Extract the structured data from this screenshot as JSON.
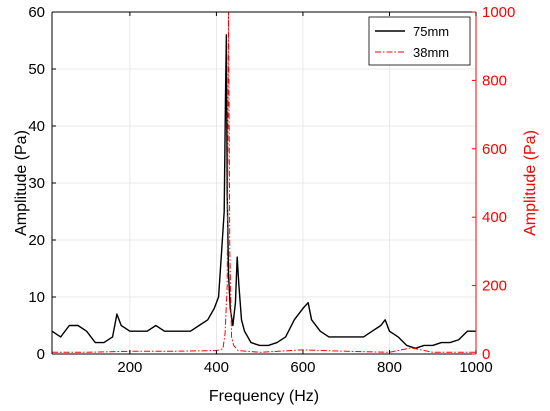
{
  "chart_data": {
    "type": "line",
    "title": "",
    "xlabel": "Frequency (Hz)",
    "ylabel_left": "Amplitude (Pa)",
    "ylabel_right": "Amplitude (Pa)",
    "xlim": [
      20,
      1000
    ],
    "ylim_left": [
      0,
      60
    ],
    "ylim_right": [
      0,
      1000
    ],
    "x_ticks": [
      200,
      400,
      600,
      800,
      1000
    ],
    "y_left_ticks": [
      0,
      10,
      20,
      30,
      40,
      50,
      60
    ],
    "y_right_ticks": [
      0,
      200,
      400,
      600,
      800,
      1000
    ],
    "grid": true,
    "legend_position": "top-right",
    "colors": {
      "left_axis": "#000000",
      "right_axis": "#ff0000",
      "grid": "#e3e3e3"
    },
    "series": [
      {
        "name": "75mm",
        "axis": "left",
        "color": "#000000",
        "style": "solid",
        "x": [
          20,
          40,
          60,
          80,
          100,
          120,
          140,
          160,
          170,
          180,
          200,
          220,
          240,
          260,
          280,
          300,
          320,
          340,
          360,
          380,
          395,
          405,
          412,
          418,
          421,
          423,
          425,
          428,
          432,
          438,
          444,
          448,
          452,
          458,
          465,
          480,
          500,
          520,
          540,
          560,
          580,
          600,
          612,
          620,
          640,
          660,
          680,
          700,
          720,
          740,
          760,
          780,
          790,
          800,
          820,
          840,
          860,
          880,
          900,
          920,
          940,
          960,
          980,
          1000
        ],
        "y": [
          4,
          3,
          5,
          5,
          4,
          2,
          2,
          3,
          7,
          5,
          4,
          4,
          4,
          5,
          4,
          4,
          4,
          4,
          5,
          6,
          8,
          10,
          18,
          25,
          45,
          56,
          28,
          14,
          8,
          5,
          9,
          17,
          12,
          6,
          4,
          2,
          1.5,
          1.5,
          2,
          3,
          6,
          8,
          9,
          6,
          4,
          3,
          3,
          3,
          3,
          3,
          4,
          5,
          6,
          4,
          3,
          1.5,
          1,
          1.5,
          1.5,
          2,
          2,
          2.5,
          4,
          4
        ]
      },
      {
        "name": "38mm",
        "axis": "right",
        "color": "#ff0000",
        "style": "dash-dot",
        "x": [
          20,
          100,
          200,
          300,
          400,
          415,
          420,
          425,
          428,
          431,
          435,
          440,
          450,
          500,
          600,
          700,
          800,
          850,
          900,
          1000
        ],
        "y": [
          5,
          5,
          8,
          8,
          10,
          15,
          60,
          200,
          1000,
          300,
          50,
          25,
          10,
          5,
          12,
          8,
          5,
          18,
          5,
          5
        ]
      }
    ]
  }
}
